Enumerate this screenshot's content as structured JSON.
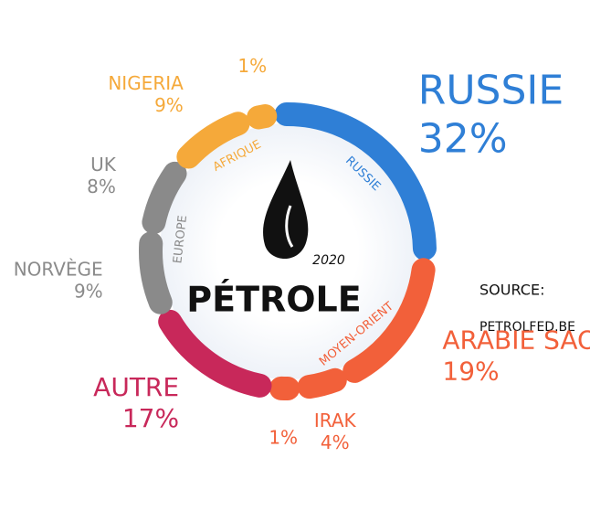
{
  "chart_data": {
    "type": "donut",
    "center_label": "PÉTROLE",
    "year": "2020",
    "source_label": "SOURCE:",
    "source": "PETROLFED.BE",
    "series": [
      {
        "name": "RUSSIE",
        "color": "#2f7fd6",
        "categories": [
          "RUSSIE"
        ],
        "values": [
          32
        ],
        "value_labels": [
          "32%"
        ]
      },
      {
        "name": "MOYEN-ORIENT",
        "color": "#f2603a",
        "categories": [
          "ARABIE SAOUDITE",
          "IRAK",
          null
        ],
        "values": [
          19,
          4,
          1
        ],
        "value_labels": [
          "19%",
          "4%",
          "1%"
        ]
      },
      {
        "color": "#c8285a",
        "categories": [
          "AUTRE"
        ],
        "values": [
          17
        ],
        "value_labels": [
          "17%"
        ]
      },
      {
        "name": "EUROPE",
        "color": "#8a8a8a",
        "categories": [
          "NORVÈGE",
          "UK"
        ],
        "values": [
          9,
          8
        ],
        "value_labels": [
          "9%",
          "8%"
        ]
      },
      {
        "name": "AFRIQUE",
        "color": "#f5a93a",
        "categories": [
          "NIGERIA",
          null
        ],
        "values": [
          9,
          1
        ],
        "value_labels": [
          "9%",
          "1%"
        ]
      }
    ]
  }
}
